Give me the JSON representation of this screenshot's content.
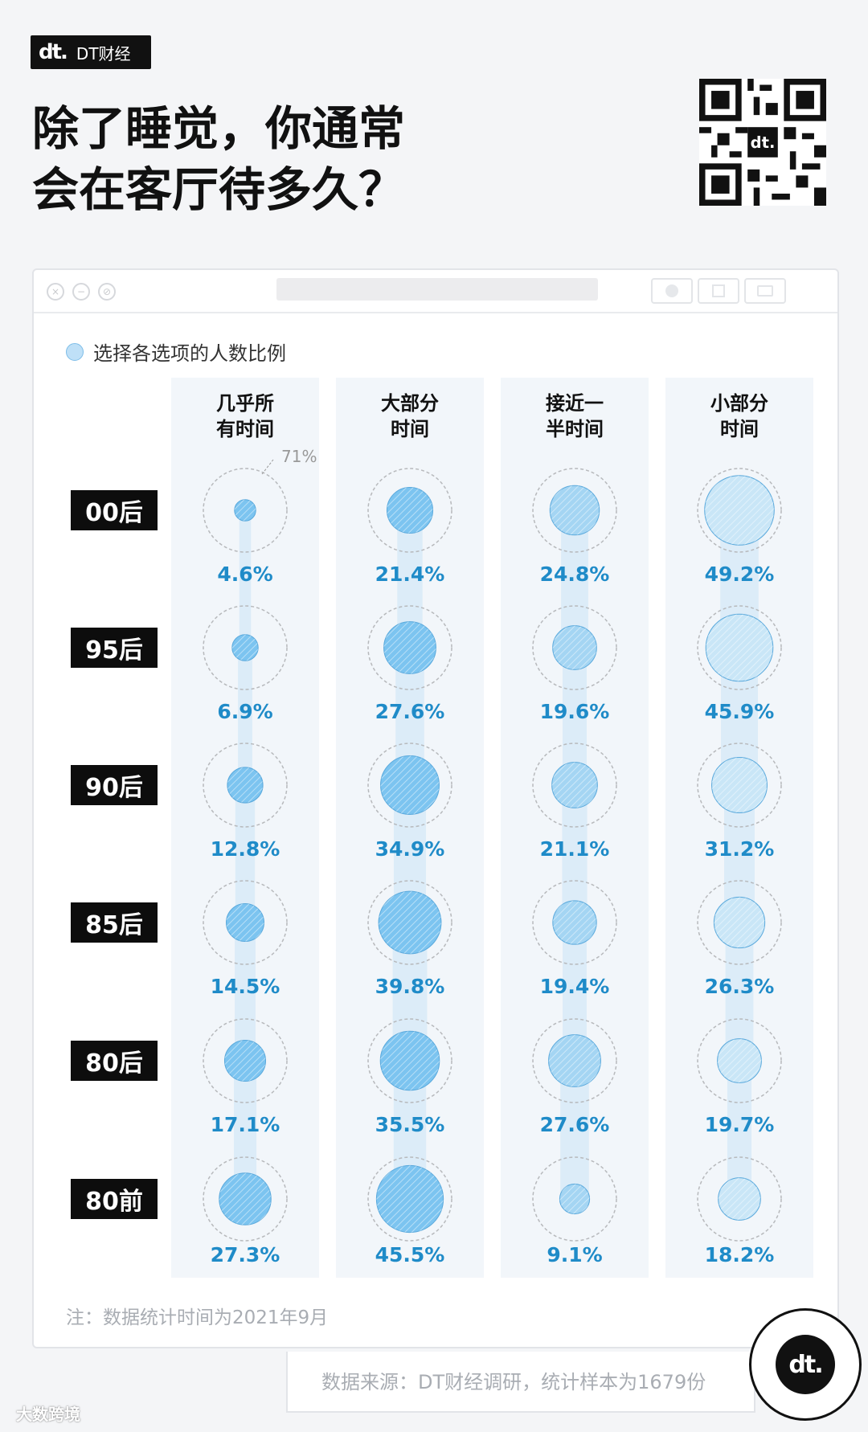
{
  "brand": {
    "logo": "dt.",
    "name": "DT财经"
  },
  "title_lines": [
    "除了睡觉，你通常",
    "会在客厅待多久？"
  ],
  "window": {
    "dots": [
      "×",
      "−",
      "⊘"
    ]
  },
  "legend": {
    "label": "选择各选项的人数比例"
  },
  "chart_data": {
    "type": "bubble-matrix",
    "categories": [
      "几乎所有时间",
      "大部分时间",
      "接近一半时间",
      "小部分时间"
    ],
    "category_headers": [
      [
        "几乎所",
        "有时间"
      ],
      [
        "大部分",
        "时间"
      ],
      [
        "接近一",
        "半时间"
      ],
      [
        "小部分",
        "时间"
      ]
    ],
    "rows": [
      "00后",
      "95后",
      "90后",
      "85后",
      "80后",
      "80前"
    ],
    "values": [
      [
        4.6,
        21.4,
        24.8,
        49.2
      ],
      [
        6.9,
        27.6,
        19.6,
        45.9
      ],
      [
        12.8,
        34.9,
        21.1,
        31.2
      ],
      [
        14.5,
        39.8,
        19.4,
        26.3
      ],
      [
        17.1,
        35.5,
        27.6,
        19.7
      ],
      [
        27.3,
        45.5,
        9.1,
        18.2
      ]
    ],
    "labels": [
      [
        "4.6%",
        "21.4%",
        "24.8%",
        "49.2%"
      ],
      [
        "6.9%",
        "27.6%",
        "19.6%",
        "45.9%"
      ],
      [
        "12.8%",
        "34.9%",
        "21.1%",
        "31.2%"
      ],
      [
        "14.5%",
        "39.8%",
        "19.4%",
        "26.3%"
      ],
      [
        "17.1%",
        "35.5%",
        "27.6%",
        "19.7%"
      ],
      [
        "27.3%",
        "45.5%",
        "9.1%",
        "18.2%"
      ]
    ],
    "reference_circle_value": "71%",
    "colors": {
      "strong": "#7cc4f0",
      "mid": "#a4d5f3",
      "light": "#c9e6f7",
      "label": "#1f8bc8",
      "ring": "#b7b9bc"
    }
  },
  "note": "注：数据统计时间为2021年9月",
  "source": "数据来源：DT财经调研，统计样本为1679份",
  "badge": {
    "logo": "dt."
  },
  "footer_mark": "大数跨境"
}
